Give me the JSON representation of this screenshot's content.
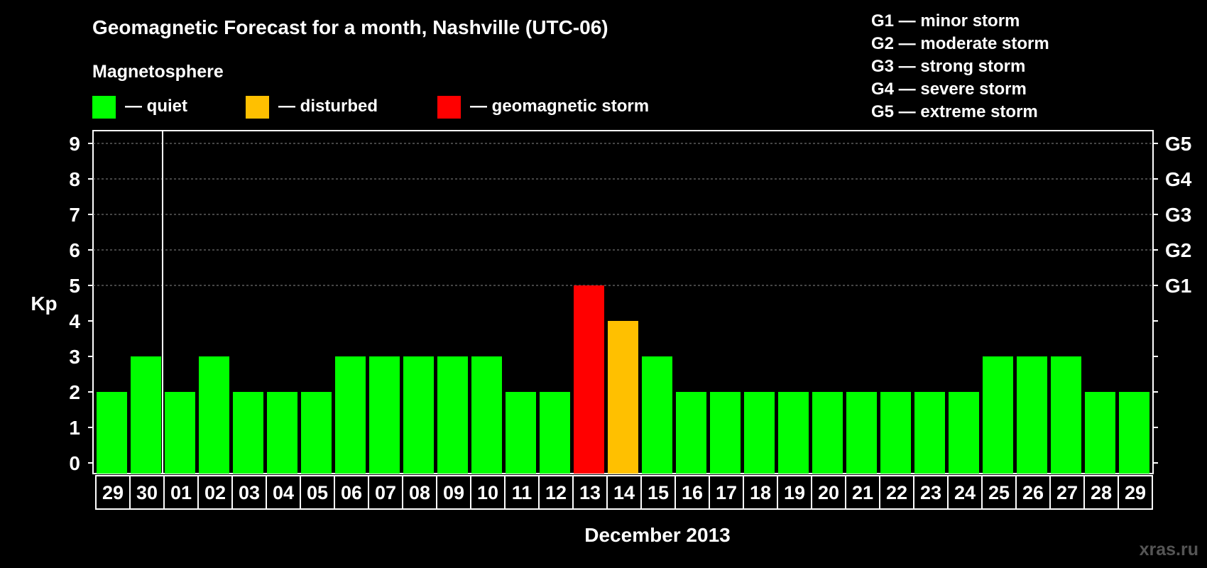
{
  "title": "Geomagnetic Forecast for a month, Nashville (UTC-06)",
  "legend": {
    "heading": "Magnetosphere",
    "items": [
      {
        "label": "— quiet",
        "color": "#00ff00"
      },
      {
        "label": "— disturbed",
        "color": "#ffc000"
      },
      {
        "label": "— geomagnetic storm",
        "color": "#ff0000"
      }
    ],
    "storm_scale": [
      "G1 — minor storm",
      "G2 — moderate storm",
      "G3 — strong storm",
      "G4 — severe storm",
      "G5 — extreme storm"
    ]
  },
  "watermark": "xras.ru",
  "chart_data": {
    "type": "bar",
    "title": "Geomagnetic Forecast for a month, Nashville (UTC-06)",
    "xlabel": "December 2013",
    "ylabel": "Kp",
    "ylim": [
      0,
      9
    ],
    "yticks": [
      "0",
      "1",
      "2",
      "3",
      "4",
      "5",
      "6",
      "7",
      "8",
      "9"
    ],
    "right_axis": [
      {
        "kp": 5,
        "label": "G1"
      },
      {
        "kp": 6,
        "label": "G2"
      },
      {
        "kp": 7,
        "label": "G3"
      },
      {
        "kp": 8,
        "label": "G4"
      },
      {
        "kp": 9,
        "label": "G5"
      }
    ],
    "categories": [
      "29",
      "30",
      "01",
      "02",
      "03",
      "04",
      "05",
      "06",
      "07",
      "08",
      "09",
      "10",
      "11",
      "12",
      "13",
      "14",
      "15",
      "16",
      "17",
      "18",
      "19",
      "20",
      "21",
      "22",
      "23",
      "24",
      "25",
      "26",
      "27",
      "28",
      "29"
    ],
    "values": [
      2,
      3,
      2,
      3,
      2,
      2,
      2,
      3,
      3,
      3,
      3,
      3,
      2,
      2,
      5,
      4,
      3,
      2,
      2,
      2,
      2,
      2,
      2,
      2,
      2,
      2,
      3,
      3,
      3,
      2,
      2
    ],
    "colors": [
      "#00ff00",
      "#00ff00",
      "#00ff00",
      "#00ff00",
      "#00ff00",
      "#00ff00",
      "#00ff00",
      "#00ff00",
      "#00ff00",
      "#00ff00",
      "#00ff00",
      "#00ff00",
      "#00ff00",
      "#00ff00",
      "#ff0000",
      "#ffc000",
      "#00ff00",
      "#00ff00",
      "#00ff00",
      "#00ff00",
      "#00ff00",
      "#00ff00",
      "#00ff00",
      "#00ff00",
      "#00ff00",
      "#00ff00",
      "#00ff00",
      "#00ff00",
      "#00ff00",
      "#00ff00",
      "#00ff00"
    ],
    "month_separator_after_index": 1,
    "grid": "dashed at Kp 5-9"
  }
}
